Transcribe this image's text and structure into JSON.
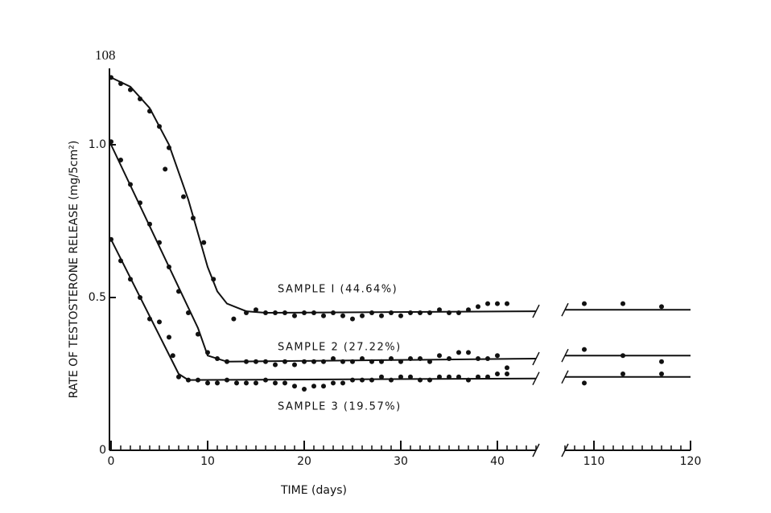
{
  "page_number": "108",
  "chart_data": {
    "type": "scatter",
    "y_label": "RATE OF TESTOSTERONE RELEASE (mg/5cm²)",
    "x_label": "TIME (days)",
    "x_segments": [
      [
        0,
        44
      ],
      [
        107,
        120
      ]
    ],
    "ylim": [
      0,
      1.25
    ],
    "xticks": [
      0,
      10,
      20,
      30,
      40,
      110,
      120
    ],
    "yticks": [
      0,
      0.5,
      {
        "value": 1,
        "label": "1.0"
      }
    ],
    "color": "#111111",
    "series": [
      {
        "name": "SAMPLE I (44.64%)",
        "x": [
          0,
          1,
          2,
          3,
          4,
          5,
          5.6,
          6,
          7.5,
          8.5,
          9.6,
          10.6,
          12.7,
          14,
          15,
          16,
          17,
          18,
          19,
          20,
          21,
          22,
          23,
          24,
          25,
          26,
          27,
          28,
          29,
          30,
          31,
          32,
          33,
          34,
          35,
          36,
          37,
          38,
          39,
          40,
          41,
          109,
          113,
          117
        ],
        "values": [
          1.22,
          1.2,
          1.18,
          1.15,
          1.11,
          1.06,
          0.92,
          0.99,
          0.83,
          0.76,
          0.68,
          0.56,
          0.43,
          0.45,
          0.46,
          0.45,
          0.45,
          0.45,
          0.44,
          0.45,
          0.45,
          0.44,
          0.45,
          0.44,
          0.43,
          0.44,
          0.45,
          0.44,
          0.45,
          0.44,
          0.45,
          0.45,
          0.45,
          0.46,
          0.45,
          0.45,
          0.46,
          0.47,
          0.48,
          0.48,
          0.48,
          0.48,
          0.48,
          0.47
        ],
        "fit_x": [
          0,
          2,
          4,
          6,
          8,
          10,
          11,
          12,
          14,
          16,
          44,
          null,
          107,
          120
        ],
        "fit_values": [
          1.22,
          1.19,
          1.12,
          1.0,
          0.82,
          0.6,
          0.52,
          0.48,
          0.455,
          0.45,
          0.455,
          null,
          0.46,
          0.46
        ]
      },
      {
        "name": "SAMPLE 2 (27.22%)",
        "x": [
          0,
          1,
          2,
          3,
          4,
          5,
          6,
          7,
          8,
          9,
          10,
          11,
          12,
          14,
          15,
          16,
          17,
          18,
          19,
          20,
          21,
          22,
          23,
          24,
          25,
          26,
          27,
          28,
          29,
          30,
          31,
          32,
          33,
          34,
          35,
          36,
          37,
          38,
          39,
          40,
          41,
          109,
          113,
          117
        ],
        "values": [
          1.01,
          0.95,
          0.87,
          0.81,
          0.74,
          0.68,
          0.6,
          0.52,
          0.45,
          0.38,
          0.32,
          0.3,
          0.29,
          0.29,
          0.29,
          0.29,
          0.28,
          0.29,
          0.28,
          0.29,
          0.29,
          0.29,
          0.3,
          0.29,
          0.29,
          0.3,
          0.29,
          0.29,
          0.3,
          0.29,
          0.3,
          0.3,
          0.29,
          0.31,
          0.3,
          0.32,
          0.32,
          0.3,
          0.3,
          0.31,
          0.27,
          0.33,
          0.31,
          0.29
        ],
        "fit_x": [
          0,
          9,
          10,
          12,
          44,
          null,
          107,
          120
        ],
        "fit_values": [
          1.0,
          0.4,
          0.31,
          0.29,
          0.3,
          null,
          0.31,
          0.31
        ]
      },
      {
        "name": "SAMPLE 3 (19.57%)",
        "x": [
          0,
          1,
          2,
          3,
          4,
          5,
          6,
          6.4,
          7,
          8,
          9,
          10,
          11,
          12,
          13,
          14,
          15,
          16,
          17,
          18,
          19,
          20,
          21,
          22,
          23,
          24,
          25,
          26,
          27,
          28,
          29,
          30,
          31,
          32,
          33,
          34,
          35,
          36,
          37,
          38,
          39,
          40,
          41,
          109,
          113,
          117
        ],
        "values": [
          0.69,
          0.62,
          0.56,
          0.5,
          0.43,
          0.42,
          0.37,
          0.31,
          0.24,
          0.23,
          0.23,
          0.22,
          0.22,
          0.23,
          0.22,
          0.22,
          0.22,
          0.23,
          0.22,
          0.22,
          0.21,
          0.2,
          0.21,
          0.21,
          0.22,
          0.22,
          0.23,
          0.23,
          0.23,
          0.24,
          0.23,
          0.24,
          0.24,
          0.23,
          0.23,
          0.24,
          0.24,
          0.24,
          0.23,
          0.24,
          0.24,
          0.25,
          0.25,
          0.22,
          0.25,
          0.25
        ],
        "fit_x": [
          0,
          7,
          8,
          44,
          null,
          107,
          120
        ],
        "fit_values": [
          0.69,
          0.25,
          0.23,
          0.235,
          null,
          0.24,
          0.24
        ]
      }
    ]
  }
}
